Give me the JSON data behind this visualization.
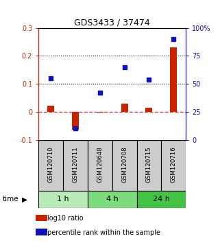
{
  "title": "GDS3433 / 37474",
  "samples": [
    "GSM120710",
    "GSM120711",
    "GSM120648",
    "GSM120708",
    "GSM120715",
    "GSM120716"
  ],
  "groups": [
    {
      "label": "1 h",
      "indices": [
        0,
        1
      ],
      "color": "#b8ebb8"
    },
    {
      "label": "4 h",
      "indices": [
        2,
        3
      ],
      "color": "#7cdc7c"
    },
    {
      "label": "24 h",
      "indices": [
        4,
        5
      ],
      "color": "#44c444"
    }
  ],
  "log10_ratio": [
    0.022,
    -0.065,
    -0.004,
    0.03,
    0.015,
    0.23
  ],
  "percentile_rank": [
    55,
    10,
    42,
    65,
    54,
    90
  ],
  "ylim_left": [
    -0.1,
    0.3
  ],
  "ylim_right": [
    0,
    100
  ],
  "yticks_left": [
    -0.1,
    0.0,
    0.1,
    0.2,
    0.3
  ],
  "yticks_right": [
    0,
    25,
    50,
    75,
    100
  ],
  "ytick_labels_left": [
    "-0.1",
    "0",
    "0.1",
    "0.2",
    "0.3"
  ],
  "ytick_labels_right": [
    "0",
    "25",
    "50",
    "75",
    "100%"
  ],
  "hlines": [
    0.1,
    0.2
  ],
  "bar_color_red": "#cc2200",
  "bar_color_blue": "#1111bb",
  "dashed_zero_color": "#dd4444",
  "sample_box_color": "#cccccc",
  "legend_items": [
    {
      "label": "log10 ratio",
      "color": "#cc2200"
    },
    {
      "label": "percentile rank within the sample",
      "color": "#1111bb"
    }
  ]
}
